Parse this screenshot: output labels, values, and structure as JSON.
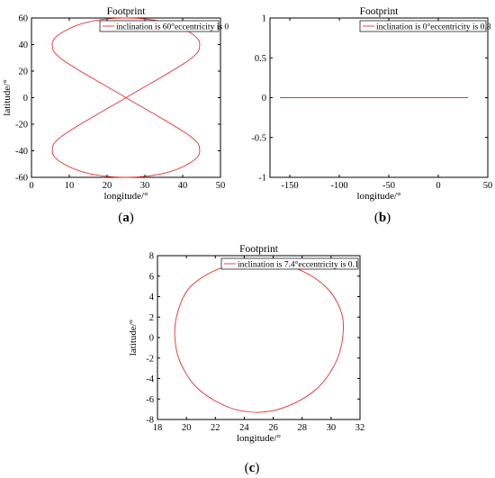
{
  "chart_data": [
    {
      "type": "line",
      "title": "Footprint",
      "xlabel": "longitude/°",
      "ylabel": "latitude/°",
      "xlim": [
        0,
        50
      ],
      "ylim": [
        -60,
        60
      ],
      "xticks": [
        0,
        10,
        20,
        30,
        40,
        50
      ],
      "yticks": [
        -60,
        -40,
        -20,
        0,
        20,
        40,
        60
      ],
      "legend": "inclination is 60°eccentricity is 0",
      "legend_position": "top-right",
      "caption_letter": "a",
      "line_color": "#e8302c",
      "series": [
        {
          "name": "inclination is 60°eccentricity is 0",
          "x": [
            25.0,
            35.0,
            42.0,
            44.5,
            41.5,
            25.0,
            8.5,
            5.5,
            8.0,
            15.0,
            25.0,
            35.0,
            42.0,
            44.5,
            41.5,
            25.0,
            8.5,
            5.5,
            8.0,
            15.0,
            25.0
          ],
          "y": [
            -60,
            -57,
            -49,
            -40,
            -28,
            0,
            28,
            40,
            49,
            57,
            60,
            57,
            49,
            40,
            28,
            0,
            -28,
            -40,
            -49,
            -57,
            -60
          ]
        }
      ]
    },
    {
      "type": "line",
      "title": "Footprint",
      "xlabel": "longitude/°",
      "ylabel": "",
      "xlim": [
        -170,
        50
      ],
      "ylim": [
        -1,
        1
      ],
      "xticks": [
        -150,
        -100,
        -50,
        0,
        50
      ],
      "yticks": [
        -1,
        -0.5,
        0,
        0.5,
        1
      ],
      "ytick_labels": [
        "-1",
        "-0.5",
        "0",
        "0.5",
        "1"
      ],
      "legend": "inclination is 0°eccentricity is 0.8",
      "legend_position": "top-right",
      "caption_letter": "b",
      "line_color": "#e8302c",
      "series": [
        {
          "name": "inclination is 0°eccentricity is 0.8",
          "x": [
            -160,
            30
          ],
          "y": [
            0,
            0
          ]
        }
      ]
    },
    {
      "type": "line",
      "title": "Footprint",
      "xlabel": "longitude/°",
      "ylabel": "latitude/°",
      "xlim": [
        18,
        32
      ],
      "ylim": [
        -8,
        8
      ],
      "xticks": [
        18,
        20,
        22,
        24,
        26,
        28,
        30,
        32
      ],
      "yticks": [
        -8,
        -6,
        -4,
        -2,
        0,
        2,
        4,
        6,
        8
      ],
      "legend": "inclination is 7.4°eccentricity is 0.1",
      "legend_position": "top-right",
      "caption_letter": "c",
      "line_color": "#e8302c",
      "series": [
        {
          "name": "inclination is 7.4°eccentricity is 0.1",
          "x": [
            25.0,
            27.5,
            29.6,
            30.7,
            30.8,
            30.3,
            29.0,
            27.0,
            25.0,
            22.9,
            20.8,
            19.6,
            19.2,
            19.4,
            20.3,
            22.4,
            25.0
          ],
          "y": [
            7.4,
            6.8,
            5.0,
            2.5,
            0.0,
            -2.5,
            -5.0,
            -6.7,
            -7.3,
            -6.8,
            -5.0,
            -2.5,
            0.0,
            2.5,
            5.0,
            6.8,
            7.4
          ]
        }
      ]
    }
  ]
}
